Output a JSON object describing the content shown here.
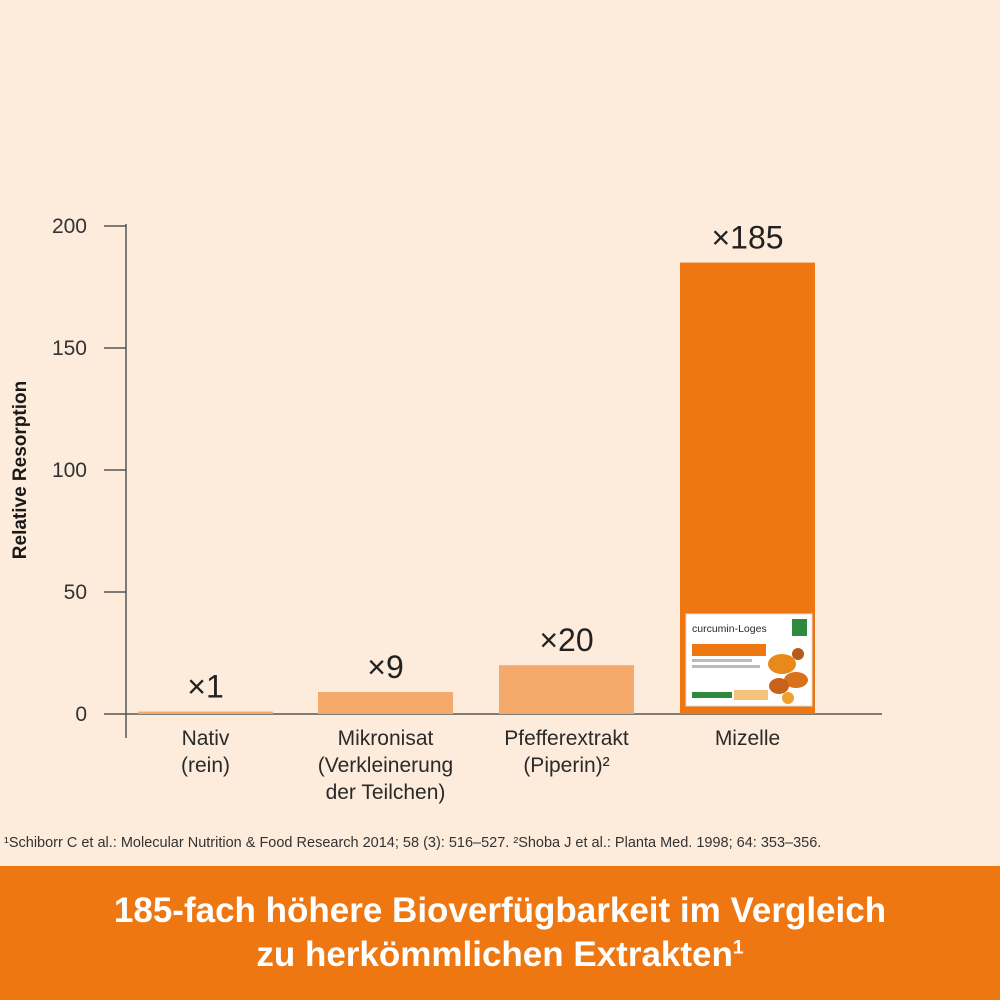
{
  "chart_data": {
    "type": "bar",
    "ylabel": "Relative Resorption",
    "ylim": [
      0,
      200
    ],
    "yticks": [
      0,
      50,
      100,
      150,
      200
    ],
    "categories": [
      [
        "Nativ",
        "(rein)"
      ],
      [
        "Mikronisat",
        "(Verkleinerung",
        "der Teilchen)"
      ],
      [
        "Pfefferextrakt",
        "(Piperin)²"
      ],
      [
        "Mizelle"
      ]
    ],
    "values": [
      1,
      9,
      20,
      185
    ],
    "value_labels": [
      "×1",
      "×9",
      "×20",
      "×185"
    ],
    "colors": [
      "#f5a96b",
      "#f5a96b",
      "#f5a96b",
      "#ee7712"
    ],
    "grid": false
  },
  "product_pack": {
    "brand": "curcumin-Loges",
    "colors": {
      "green": "#2e8b3d",
      "orange": "#ee7712"
    }
  },
  "footnote": "¹Schiborr C et al.: Molecular Nutrition & Food Research 2014; 58 (3): 516–527. ²Shoba J et al.: Planta Med. 1998; 64: 353–356.",
  "banner": {
    "line1": "185-fach höhere Bioverfügbarkeit im Vergleich",
    "line2": "zu herkömmlichen Extrakten",
    "line2_sup": "1"
  }
}
